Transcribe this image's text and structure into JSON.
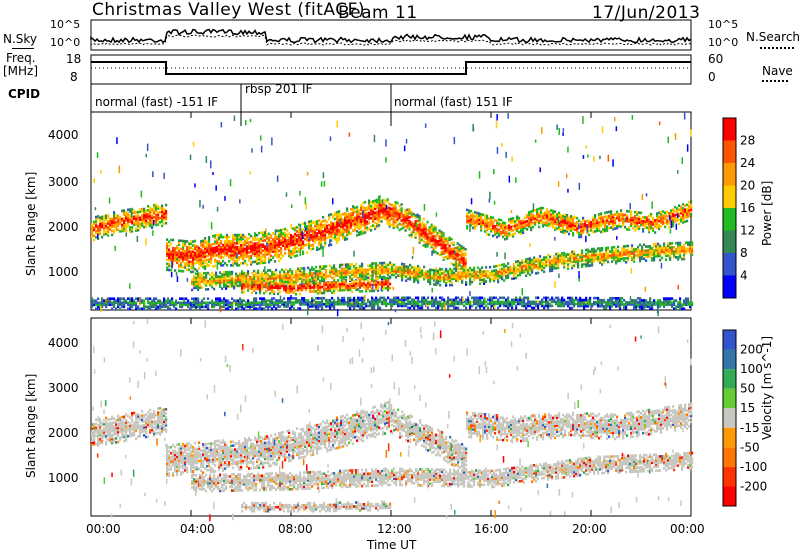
{
  "header": {
    "station": "Christmas Valley West (fitACF)",
    "beam": "Beam 11",
    "date": "17/Jun/2013"
  },
  "top_panels": {
    "nsky_label": "N.Sky",
    "nsearch_label": "N.Search",
    "noise_ticks_left": [
      "10^5",
      "10^0"
    ],
    "noise_ticks_right": [
      "10^5",
      "10^0"
    ],
    "freq_label": "Freq.",
    "freq_unit": "[MHz]",
    "freq_ticks": [
      "18",
      "8"
    ],
    "nave_label": "Nave",
    "nave_ticks": [
      "60",
      "0"
    ],
    "cpid_label": "CPID",
    "cpid_segments": [
      {
        "label": "normal (fast) -151 IF",
        "start_hour": 0,
        "end_hour": 6
      },
      {
        "label": "rbsp 201 IF",
        "start_hour": 6,
        "end_hour": 12
      },
      {
        "label": "normal (fast) 151 IF",
        "start_hour": 12,
        "end_hour": 24
      }
    ]
  },
  "chart_data": [
    {
      "type": "heatmap",
      "title": "",
      "xlabel": "",
      "ylabel": "Slant Range [km]",
      "xlim": [
        0,
        24
      ],
      "ylim": [
        180,
        4600
      ],
      "yticks": [
        "4000",
        "3000",
        "2000",
        "1000"
      ],
      "colorbar_label": "Power [dB]",
      "colorbar_ticks": [
        "28",
        "24",
        "20",
        "16",
        "12",
        "8",
        "4"
      ],
      "colorbar_colors": [
        "#ff0000",
        "#ff5500",
        "#ff9900",
        "#ffcc00",
        "#22bb22",
        "#338855",
        "#3355cc",
        "#0000ff"
      ],
      "bands": [
        {
          "t": [
            0.0,
            0.5,
            1.5,
            2.5,
            3.0
          ],
          "r": [
            1950,
            2050,
            2150,
            2250,
            2300
          ],
          "w": 250,
          "level": 0.9
        },
        {
          "t": [
            3.0,
            4.0,
            5.0,
            6.0,
            7.5,
            9.0,
            10.5,
            11.5
          ],
          "r": [
            1400,
            1350,
            1500,
            1500,
            1600,
            1850,
            2150,
            2350
          ],
          "w": 350,
          "level": 0.95
        },
        {
          "t": [
            11.5,
            12.5,
            13.5,
            14.5,
            15.0
          ],
          "r": [
            2400,
            2200,
            1800,
            1400,
            1200
          ],
          "w": 300,
          "level": 0.95
        },
        {
          "t": [
            15.0,
            16.5,
            18.0,
            19.5,
            21.0,
            22.5,
            24.0
          ],
          "r": [
            2200,
            1950,
            2250,
            2000,
            2200,
            2100,
            2400
          ],
          "w": 220,
          "level": 0.85
        },
        {
          "t": [
            4.0,
            6.0,
            8.0,
            10.0,
            12.0,
            14.0,
            16.0,
            18.0,
            20.0,
            22.0,
            24.0
          ],
          "r": [
            800,
            850,
            900,
            1000,
            1050,
            900,
            950,
            1200,
            1350,
            1450,
            1500
          ],
          "w": 200,
          "level": 0.7
        },
        {
          "t": [
            6.0,
            8.0,
            10.0,
            12.0
          ],
          "r": [
            700,
            650,
            700,
            750
          ],
          "w": 150,
          "level": 0.95
        },
        {
          "t": [
            0.0,
            6.0,
            12.0,
            18.0,
            24.0
          ],
          "r": [
            300,
            300,
            320,
            320,
            300
          ],
          "w": 120,
          "level": 0.35
        }
      ]
    },
    {
      "type": "heatmap",
      "title": "",
      "xlabel": "Time UT",
      "ylabel": "Slant Range [km]",
      "xlim": [
        0,
        24
      ],
      "ylim": [
        180,
        4600
      ],
      "xticks": [
        "00:00",
        "04:00",
        "08:00",
        "12:00",
        "16:00",
        "20:00",
        "00:00"
      ],
      "yticks": [
        "4000",
        "3000",
        "2000",
        "1000"
      ],
      "colorbar_label": "Velocity [m s^-1]",
      "colorbar_ticks": [
        "200",
        "100",
        "50",
        "15",
        "-15",
        "-50",
        "-100",
        "-200"
      ],
      "colorbar_colors": [
        "#3355cc",
        "#3377aa",
        "#33aa55",
        "#66cc33",
        "#c8c8c0",
        "#ff9900",
        "#ff7700",
        "#ff3300",
        "#ff0000"
      ],
      "bands": [
        {
          "t": [
            0.0,
            1.5,
            3.0
          ],
          "r": [
            2000,
            2150,
            2300
          ],
          "w": 300,
          "level": 0.5
        },
        {
          "t": [
            3.0,
            5.0,
            7.0,
            9.0,
            11.0,
            12.0
          ],
          "r": [
            1400,
            1500,
            1600,
            1900,
            2200,
            2400
          ],
          "w": 350,
          "level": 0.5
        },
        {
          "t": [
            12.0,
            13.5,
            15.0
          ],
          "r": [
            2300,
            1900,
            1400
          ],
          "w": 300,
          "level": 0.5
        },
        {
          "t": [
            15.0,
            17.0,
            19.0,
            21.0,
            24.0
          ],
          "r": [
            2200,
            2100,
            2200,
            2150,
            2400
          ],
          "w": 280,
          "level": 0.5
        },
        {
          "t": [
            4.0,
            8.0,
            12.0,
            16.0,
            20.0,
            24.0
          ],
          "r": [
            900,
            950,
            1050,
            1000,
            1300,
            1400
          ],
          "w": 200,
          "level": 0.5
        },
        {
          "t": [
            6.0,
            9.0,
            12.0
          ],
          "r": [
            350,
            350,
            380
          ],
          "w": 90,
          "level": 0.8
        }
      ]
    }
  ]
}
